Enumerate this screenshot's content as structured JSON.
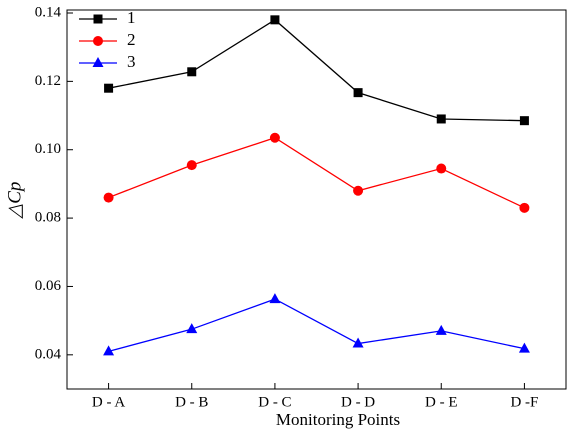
{
  "chart_data": {
    "type": "line",
    "x_label": "Monitoring Points",
    "y_label": "△Cp",
    "categories": [
      "D - A",
      "D - B",
      "D - C",
      "D - D",
      "D - E",
      "D -F"
    ],
    "series": [
      {
        "name": "1",
        "color": "#000000",
        "marker": "square",
        "values": [
          0.118,
          0.1228,
          0.138,
          0.1167,
          0.109,
          0.1085
        ]
      },
      {
        "name": "2",
        "color": "#ff0000",
        "marker": "circle",
        "values": [
          0.086,
          0.0955,
          0.1035,
          0.088,
          0.0945,
          0.083
        ]
      },
      {
        "name": "3",
        "color": "#0000ff",
        "marker": "triangle",
        "values": [
          0.041,
          0.0475,
          0.0563,
          0.0433,
          0.047,
          0.0418
        ]
      }
    ],
    "ylim": [
      0.03,
      0.14
    ],
    "yticks": [
      0.04,
      0.06,
      0.08,
      {
        "value": 0.1,
        "label": "0.10"
      },
      0.12,
      0.14
    ],
    "legend": "top-left"
  }
}
